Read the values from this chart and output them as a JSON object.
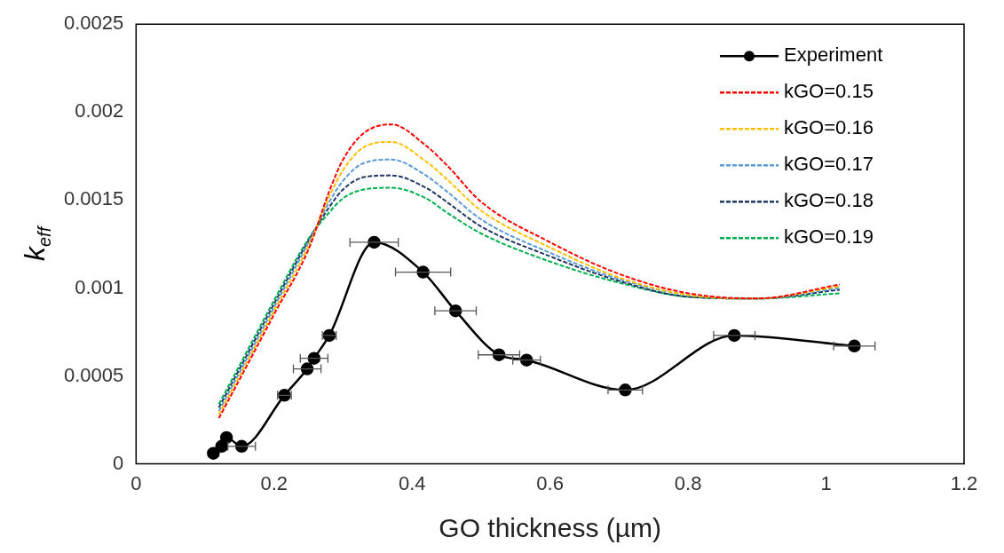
{
  "chart_data": {
    "type": "line",
    "xlabel": "GO thickness (µm)",
    "ylabel": "k$_{eff}$",
    "xlim": [
      0,
      1.2
    ],
    "xticks": [
      0,
      0.2,
      0.4,
      0.6,
      0.8,
      1,
      1.2
    ],
    "ylim": [
      0,
      0.0025
    ],
    "yticks": [
      0,
      0.0005,
      0.001,
      0.0015,
      0.002,
      0.0025
    ],
    "grid": false,
    "legend": "top right",
    "series": [
      {
        "name": "Experiment",
        "color": "#000000",
        "marker": "circle",
        "line_style": "solid",
        "x": [
          0.112,
          0.124,
          0.131,
          0.153,
          0.215,
          0.248,
          0.258,
          0.28,
          0.345,
          0.416,
          0.463,
          0.526,
          0.566,
          0.709,
          0.867,
          1.041
        ],
        "values": [
          6e-05,
          0.0001,
          0.00015,
          0.0001,
          0.00039,
          0.00054,
          0.0006,
          0.00073,
          0.00126,
          0.00109,
          0.00087,
          0.00062,
          0.00059,
          0.00042,
          0.00073,
          0.00067
        ],
        "xerrors": [
          null,
          null,
          null,
          0.02,
          0.01,
          0.02,
          0.02,
          0.01,
          0.035,
          0.04,
          0.03,
          0.03,
          0.02,
          0.025,
          0.03,
          0.03
        ]
      },
      {
        "name": "kGO=0.15",
        "color": "#ff0000",
        "marker": "none",
        "line_style": "dashed",
        "x": [
          0.12,
          0.15,
          0.2,
          0.25,
          0.28,
          0.3,
          0.33,
          0.37,
          0.42,
          0.45,
          0.5,
          0.6,
          0.7,
          0.8,
          0.9,
          1.02
        ],
        "values": [
          0.00026,
          0.00048,
          0.00085,
          0.00122,
          0.00155,
          0.00173,
          0.00188,
          0.00193,
          0.00181,
          0.0017,
          0.00149,
          0.00126,
          0.00108,
          0.00097,
          0.00094,
          0.00102
        ]
      },
      {
        "name": "kGO=0.16",
        "color": "#ffc000",
        "marker": "none",
        "line_style": "dashed",
        "x": [
          0.12,
          0.15,
          0.2,
          0.25,
          0.28,
          0.3,
          0.33,
          0.37,
          0.42,
          0.45,
          0.5,
          0.6,
          0.7,
          0.8,
          0.9,
          1.02
        ],
        "values": [
          0.00028,
          0.0005,
          0.00087,
          0.00124,
          0.00152,
          0.00167,
          0.0018,
          0.00183,
          0.00172,
          0.00162,
          0.00144,
          0.00123,
          0.00106,
          0.00096,
          0.00094,
          0.00101
        ]
      },
      {
        "name": "kGO=0.17",
        "color": "#5b9bd5",
        "marker": "none",
        "line_style": "dashed",
        "x": [
          0.12,
          0.15,
          0.2,
          0.25,
          0.28,
          0.3,
          0.33,
          0.37,
          0.42,
          0.45,
          0.5,
          0.6,
          0.7,
          0.8,
          0.9,
          1.02
        ],
        "values": [
          0.0003,
          0.00052,
          0.00089,
          0.00126,
          0.00149,
          0.00161,
          0.00171,
          0.00173,
          0.00164,
          0.00155,
          0.00139,
          0.0012,
          0.00105,
          0.00096,
          0.00094,
          0.001
        ]
      },
      {
        "name": "kGO=0.18",
        "color": "#203864",
        "marker": "none",
        "line_style": "dashed",
        "x": [
          0.12,
          0.15,
          0.2,
          0.25,
          0.28,
          0.3,
          0.33,
          0.37,
          0.42,
          0.45,
          0.5,
          0.6,
          0.7,
          0.8,
          0.9,
          1.02
        ],
        "values": [
          0.00032,
          0.00054,
          0.00091,
          0.00127,
          0.00146,
          0.00156,
          0.00163,
          0.00164,
          0.00157,
          0.00149,
          0.00135,
          0.00118,
          0.00104,
          0.00095,
          0.00094,
          0.00099
        ]
      },
      {
        "name": "kGO=0.19",
        "color": "#00b050",
        "marker": "none",
        "line_style": "dashed",
        "x": [
          0.12,
          0.15,
          0.2,
          0.25,
          0.28,
          0.3,
          0.33,
          0.37,
          0.42,
          0.45,
          0.5,
          0.6,
          0.7,
          0.8,
          0.9,
          1.02
        ],
        "values": [
          0.00034,
          0.00056,
          0.00093,
          0.00128,
          0.00143,
          0.00151,
          0.00156,
          0.00157,
          0.00151,
          0.00143,
          0.00131,
          0.00115,
          0.00103,
          0.00095,
          0.00094,
          0.00097
        ]
      }
    ]
  }
}
